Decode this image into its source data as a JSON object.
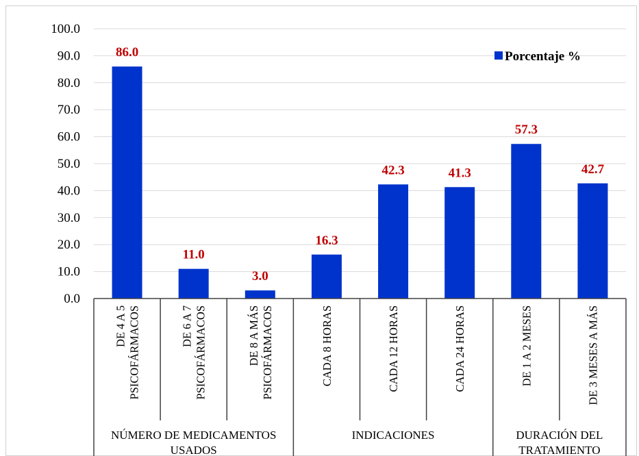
{
  "chart_data": {
    "type": "bar",
    "categories": [
      [
        "DE 4 A 5",
        "PSICOFÁRMACOS"
      ],
      [
        "DE 6 A 7",
        "PSICOFÁRMACOS"
      ],
      [
        "DE 8 A MÁS",
        "PSICOFÁRMACOS"
      ],
      [
        "CADA 8 HORAS"
      ],
      [
        "CADA 12 HORAS"
      ],
      [
        "CADA 24 HORAS"
      ],
      [
        "DE 1 A 2 MESES"
      ],
      [
        "DE 3 MESES A MÁS"
      ]
    ],
    "groups": [
      {
        "label": [
          "NÚMERO DE MEDICAMENTOS",
          "USADOS"
        ],
        "span": 3
      },
      {
        "label": [
          "INDICACIONES"
        ],
        "span": 3
      },
      {
        "label": [
          "DURACIÓN DEL",
          "TRATAMIENTO"
        ],
        "span": 2
      }
    ],
    "series": [
      {
        "name": "Porcentaje %",
        "values": [
          86.0,
          11.0,
          3.0,
          16.3,
          42.3,
          41.3,
          57.3,
          42.7
        ]
      }
    ],
    "data_labels": [
      "86.0",
      "11.0",
      "3.0",
      "16.3",
      "42.3",
      "41.3",
      "57.3",
      "42.7"
    ],
    "yticks": [
      "0.0",
      "10.0",
      "20.0",
      "30.0",
      "40.0",
      "50.0",
      "60.0",
      "70.0",
      "80.0",
      "90.0",
      "100.0"
    ],
    "ylim": [
      0,
      100
    ],
    "title": "",
    "xlabel": "",
    "ylabel": "",
    "grid": true,
    "legend_position": "top-right",
    "colors": {
      "bar": "#0033cc",
      "data_label": "#c00000",
      "grid": "#d9d9d9",
      "axis": "#404040"
    }
  }
}
